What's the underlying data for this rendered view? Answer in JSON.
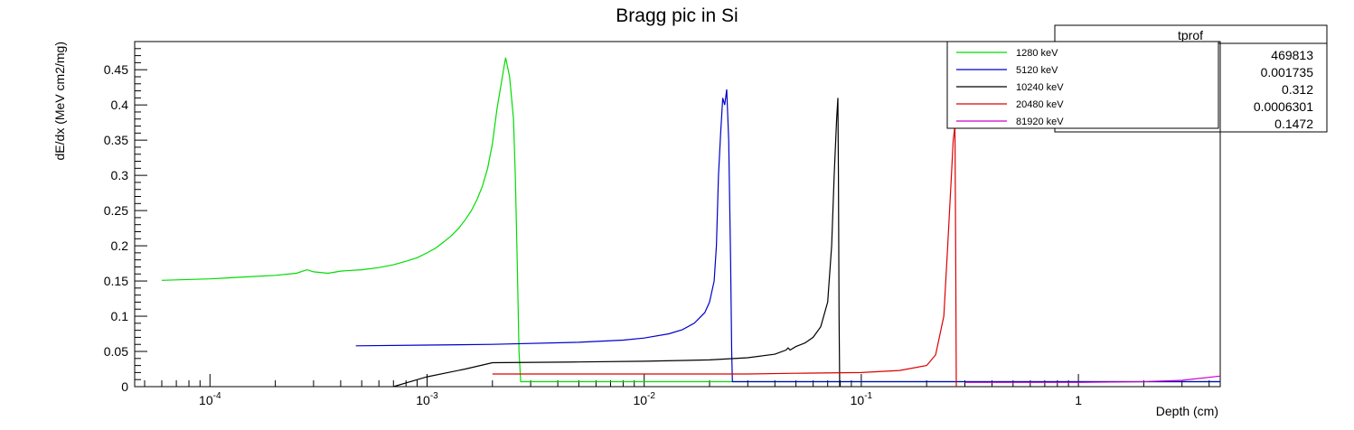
{
  "chart_data": {
    "type": "line",
    "title": "Bragg pic in Si",
    "xlabel": "Depth (cm)",
    "ylabel": "dE/dx (MeV cm2/mg)",
    "xscale": "log",
    "xlim": [
      4.5e-05,
      4.5
    ],
    "ylim": [
      0,
      0.49
    ],
    "yticks": [
      0,
      0.05,
      0.1,
      0.15,
      0.2,
      0.25,
      0.3,
      0.35,
      0.4,
      0.45
    ],
    "ytick_labels": [
      "0",
      "0.05",
      "0.1",
      "0.15",
      "0.2",
      "0.25",
      "0.3",
      "0.35",
      "0.4",
      "0.45"
    ],
    "xticks": [
      {
        "value": 0.0001,
        "base": "10",
        "exp": "-4"
      },
      {
        "value": 0.001,
        "base": "10",
        "exp": "-3"
      },
      {
        "value": 0.01,
        "base": "10",
        "exp": "-2"
      },
      {
        "value": 0.1,
        "base": "10",
        "exp": "-1"
      },
      {
        "value": 1,
        "base": "1",
        "exp": ""
      }
    ],
    "legend_position": "top-right",
    "series": [
      {
        "name": "1280 keV",
        "color": "#00dd00",
        "points": [
          [
            6e-05,
            0.151
          ],
          [
            0.0001,
            0.153
          ],
          [
            0.00015,
            0.156
          ],
          [
            0.0002,
            0.158
          ],
          [
            0.00025,
            0.161
          ],
          [
            0.00028,
            0.166
          ],
          [
            0.0003,
            0.163
          ],
          [
            0.00035,
            0.161
          ],
          [
            0.0004,
            0.164
          ],
          [
            0.0005,
            0.166
          ],
          [
            0.0006,
            0.169
          ],
          [
            0.0007,
            0.173
          ],
          [
            0.0008,
            0.178
          ],
          [
            0.0009,
            0.183
          ],
          [
            0.001,
            0.19
          ],
          [
            0.0011,
            0.197
          ],
          [
            0.0012,
            0.206
          ],
          [
            0.0013,
            0.215
          ],
          [
            0.0014,
            0.225
          ],
          [
            0.0015,
            0.237
          ],
          [
            0.0016,
            0.25
          ],
          [
            0.0017,
            0.266
          ],
          [
            0.0018,
            0.285
          ],
          [
            0.0019,
            0.31
          ],
          [
            0.002,
            0.345
          ],
          [
            0.0021,
            0.395
          ],
          [
            0.00225,
            0.45
          ],
          [
            0.0023,
            0.467
          ],
          [
            0.0024,
            0.44
          ],
          [
            0.0025,
            0.38
          ],
          [
            0.00255,
            0.3
          ],
          [
            0.0026,
            0.18
          ],
          [
            0.00265,
            0.05
          ],
          [
            0.0027,
            0.007
          ],
          [
            0.01,
            0.007
          ],
          [
            0.1,
            0.007
          ],
          [
            1,
            0.007
          ],
          [
            4.5,
            0.007
          ]
        ]
      },
      {
        "name": "5120 keV",
        "color": "#0000cc",
        "points": [
          [
            0.00047,
            0.058
          ],
          [
            0.001,
            0.059
          ],
          [
            0.002,
            0.06
          ],
          [
            0.005,
            0.063
          ],
          [
            0.008,
            0.066
          ],
          [
            0.01,
            0.069
          ],
          [
            0.013,
            0.075
          ],
          [
            0.015,
            0.081
          ],
          [
            0.017,
            0.09
          ],
          [
            0.019,
            0.105
          ],
          [
            0.02,
            0.12
          ],
          [
            0.021,
            0.15
          ],
          [
            0.0215,
            0.2
          ],
          [
            0.022,
            0.3
          ],
          [
            0.0225,
            0.36
          ],
          [
            0.023,
            0.41
          ],
          [
            0.0235,
            0.4
          ],
          [
            0.024,
            0.422
          ],
          [
            0.0245,
            0.35
          ],
          [
            0.025,
            0.18
          ],
          [
            0.0253,
            0.05
          ],
          [
            0.0255,
            0.007
          ],
          [
            0.05,
            0.007
          ],
          [
            4.5,
            0.007
          ]
        ]
      },
      {
        "name": "10240 keV",
        "color": "#000000",
        "points": [
          [
            0.0007,
            0.0
          ],
          [
            0.001,
            0.014
          ],
          [
            0.0015,
            0.025
          ],
          [
            0.002,
            0.034
          ],
          [
            0.005,
            0.035
          ],
          [
            0.01,
            0.036
          ],
          [
            0.02,
            0.038
          ],
          [
            0.03,
            0.041
          ],
          [
            0.04,
            0.046
          ],
          [
            0.045,
            0.052
          ],
          [
            0.046,
            0.055
          ],
          [
            0.047,
            0.052
          ],
          [
            0.05,
            0.057
          ],
          [
            0.055,
            0.062
          ],
          [
            0.06,
            0.07
          ],
          [
            0.065,
            0.085
          ],
          [
            0.07,
            0.12
          ],
          [
            0.073,
            0.2
          ],
          [
            0.075,
            0.3
          ],
          [
            0.077,
            0.38
          ],
          [
            0.078,
            0.41
          ],
          [
            0.0785,
            0.3
          ],
          [
            0.079,
            0.1
          ],
          [
            0.0795,
            0.0
          ]
        ]
      },
      {
        "name": "20480 keV",
        "color": "#dd0000",
        "points": [
          [
            0.002,
            0.018
          ],
          [
            0.01,
            0.018
          ],
          [
            0.03,
            0.018
          ],
          [
            0.05,
            0.019
          ],
          [
            0.1,
            0.02
          ],
          [
            0.15,
            0.023
          ],
          [
            0.2,
            0.03
          ],
          [
            0.22,
            0.045
          ],
          [
            0.24,
            0.1
          ],
          [
            0.25,
            0.2
          ],
          [
            0.26,
            0.3
          ],
          [
            0.265,
            0.35
          ],
          [
            0.27,
            0.37
          ],
          [
            0.272,
            0.2
          ],
          [
            0.274,
            0.0
          ]
        ]
      },
      {
        "name": "81920 keV",
        "color": "#cc00cc",
        "points": [
          [
            0.3,
            0.006
          ],
          [
            0.5,
            0.006
          ],
          [
            1,
            0.006
          ],
          [
            2,
            0.007
          ],
          [
            3,
            0.009
          ],
          [
            4.5,
            0.015
          ]
        ]
      }
    ],
    "stats_box": {
      "title": "tprof",
      "values": [
        "469813",
        "0.001735",
        "0.312",
        "0.0006301",
        "0.1472"
      ]
    }
  }
}
